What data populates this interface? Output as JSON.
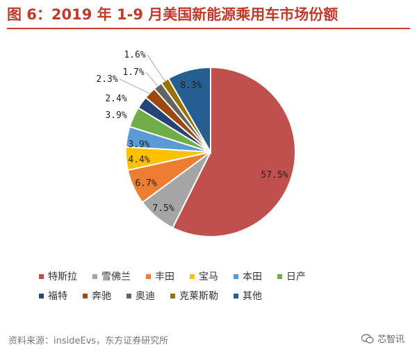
{
  "title": "图 6：2019 年 1-9 月美国新能源乘用车市场份额",
  "source": "资料来源：insideEvs，东方证券研究所",
  "watermark": "芯智讯",
  "chart_data": {
    "type": "pie",
    "title": "图 6：2019 年 1-9 月美国新能源乘用车市场份额",
    "categories": [
      "特斯拉",
      "雪佛兰",
      "丰田",
      "宝马",
      "本田",
      "日产",
      "福特",
      "奔驰",
      "奥迪",
      "克莱斯勒",
      "其他"
    ],
    "values": [
      57.5,
      7.5,
      6.7,
      4.4,
      3.9,
      3.9,
      2.4,
      2.3,
      1.7,
      1.6,
      8.3
    ],
    "labels": [
      "57.5%",
      "7.5%",
      "6.7%",
      "4.4%",
      "3.9%",
      "3.9%",
      "2.4%",
      "2.3%",
      "1.7%",
      "1.6%",
      "8.3%"
    ],
    "colors": [
      "#c0504d",
      "#a5a5a5",
      "#ed7d31",
      "#ffc000",
      "#5b9bd5",
      "#70ad47",
      "#264478",
      "#9e480e",
      "#636363",
      "#997300",
      "#255e91"
    ],
    "legend_position": "bottom"
  },
  "legend_rows": [
    [
      0,
      1,
      2,
      3,
      4,
      5
    ],
    [
      6,
      7,
      8,
      9,
      10
    ]
  ]
}
